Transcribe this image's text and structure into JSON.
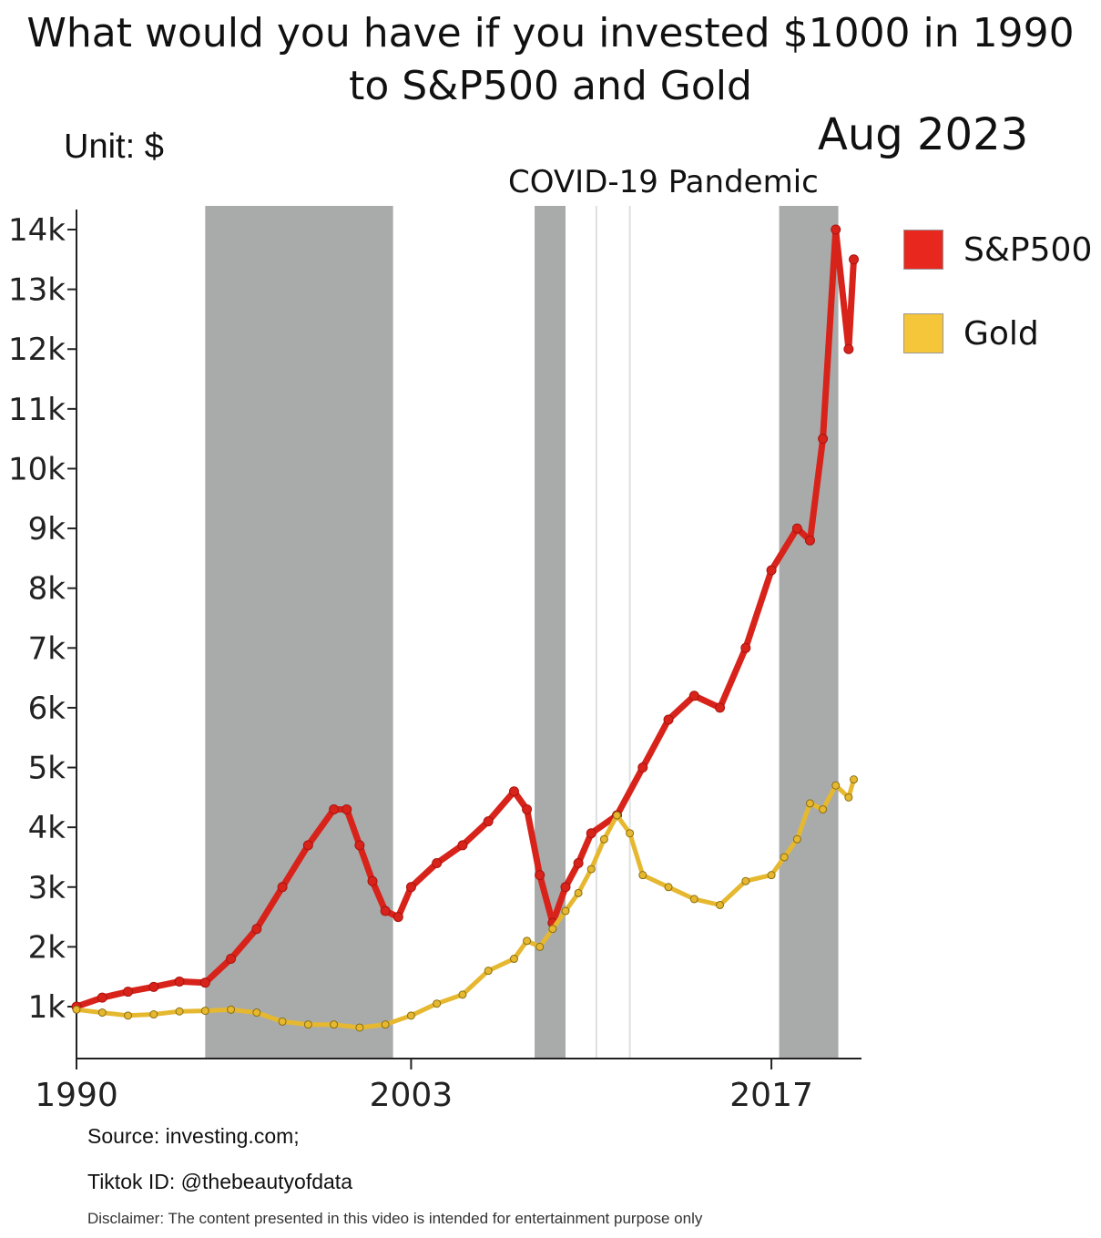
{
  "chart_data": {
    "type": "line",
    "title_line1": "What would you have if you invested $1000 in 1990",
    "title_line2": "to S&P500 and Gold",
    "unit_label": "Unit: $",
    "date_label": "Aug 2023",
    "event_label": "COVID-19 Pandemic",
    "xlim": [
      1990,
      2020.5
    ],
    "ylim": [
      0,
      14500
    ],
    "x_ticks": [
      1990,
      2003,
      2017
    ],
    "x_tick_labels": [
      "1990",
      "2003",
      "2017"
    ],
    "y_ticks": [
      1000,
      2000,
      3000,
      4000,
      5000,
      6000,
      7000,
      8000,
      9000,
      10000,
      11000,
      12000,
      13000,
      14000
    ],
    "y_tick_labels": [
      "1k",
      "2k",
      "3k",
      "4k",
      "5k",
      "6k",
      "7k",
      "8k",
      "9k",
      "10k",
      "11k",
      "12k",
      "13k",
      "14k"
    ],
    "shaded_periods": [
      {
        "start": 1995,
        "end": 2002.3
      },
      {
        "start": 2007.8,
        "end": 2009.0
      },
      {
        "start": 2017.3,
        "end": 2019.6
      }
    ],
    "reference_lines": [
      2010.2,
      2011.5
    ],
    "legend": [
      {
        "name": "S&P500",
        "color": "#e8281e"
      },
      {
        "name": "Gold",
        "color": "#f5c53a"
      }
    ],
    "series": [
      {
        "name": "S&P500",
        "color": "#d8231b",
        "x": [
          1990,
          1991,
          1992,
          1993,
          1994,
          1995,
          1996,
          1997,
          1998,
          1999,
          2000,
          2000.5,
          2001,
          2001.5,
          2002,
          2002.5,
          2003,
          2004,
          2005,
          2006,
          2007,
          2007.5,
          2008,
          2008.5,
          2009,
          2009.5,
          2010,
          2011,
          2012,
          2013,
          2014,
          2015,
          2016,
          2017,
          2018,
          2018.5,
          2019,
          2019.5,
          2020,
          2020.2
        ],
        "y": [
          1000,
          1150,
          1250,
          1330,
          1420,
          1400,
          1800,
          2300,
          3000,
          3700,
          4300,
          4300,
          3700,
          3100,
          2600,
          2500,
          3000,
          3400,
          3700,
          4100,
          4600,
          4300,
          3200,
          2400,
          3000,
          3400,
          3900,
          4200,
          5000,
          5800,
          6200,
          6000,
          7000,
          8300,
          9000,
          8800,
          10500,
          14000,
          12000,
          13500
        ]
      },
      {
        "name": "Gold",
        "color": "#e6b830",
        "x": [
          1990,
          1991,
          1992,
          1993,
          1994,
          1995,
          1996,
          1997,
          1998,
          1999,
          2000,
          2001,
          2002,
          2003,
          2004,
          2005,
          2006,
          2007,
          2007.5,
          2008,
          2008.5,
          2009,
          2009.5,
          2010,
          2010.5,
          2011,
          2011.5,
          2012,
          2013,
          2014,
          2015,
          2016,
          2017,
          2017.5,
          2018,
          2018.5,
          2019,
          2019.5,
          2020,
          2020.2
        ],
        "y": [
          950,
          900,
          850,
          870,
          920,
          930,
          950,
          900,
          750,
          700,
          700,
          650,
          700,
          850,
          1050,
          1200,
          1600,
          1800,
          2100,
          2000,
          2300,
          2600,
          2900,
          3300,
          3800,
          4200,
          3900,
          3200,
          3000,
          2800,
          2700,
          3100,
          3200,
          3500,
          3800,
          4400,
          4300,
          4700,
          4500,
          4800
        ]
      }
    ]
  },
  "footer": {
    "source": "Source: investing.com;",
    "tiktok": "Tiktok ID: @thebeautyofdata",
    "disclaimer": "Disclaimer: The content presented in this video is intended for entertainment purpose only"
  }
}
